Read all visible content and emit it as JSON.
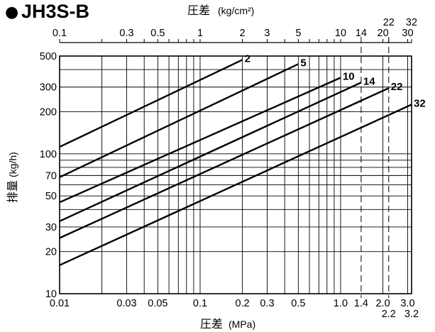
{
  "chart_data": {
    "type": "line",
    "title": "JH3S-B",
    "bullet": "●",
    "xlabel_top": "圧差",
    "xlabel_top_unit": "(kg/cm²)",
    "xlabel_bottom": "圧差",
    "xlabel_bottom_unit": "(MPa)",
    "ylabel": "排量",
    "ylabel_unit": "(kg/h)",
    "x_scale": "log",
    "y_scale": "log",
    "xlim": [
      0.01,
      3.2
    ],
    "ylim": [
      10,
      500
    ],
    "x_grid": [
      0.01,
      0.02,
      0.03,
      0.04,
      0.05,
      0.06,
      0.07,
      0.08,
      0.09,
      0.1,
      0.2,
      0.3,
      0.4,
      0.5,
      0.6,
      0.7,
      0.8,
      0.9,
      1.0,
      2.0,
      3.0
    ],
    "y_grid": [
      10,
      20,
      30,
      40,
      50,
      60,
      70,
      80,
      90,
      100,
      200,
      300,
      400,
      500
    ],
    "x_ticks_bottom": [
      {
        "value": 0.01,
        "label": "0.01"
      },
      {
        "value": 0.03,
        "label": "0.03"
      },
      {
        "value": 0.05,
        "label": "0.05"
      },
      {
        "value": 0.1,
        "label": "0.1"
      },
      {
        "value": 0.2,
        "label": "0.2"
      },
      {
        "value": 0.3,
        "label": "0.3"
      },
      {
        "value": 0.5,
        "label": "0.5"
      },
      {
        "value": 1.0,
        "label": "1.0"
      },
      {
        "value": 1.4,
        "label": "1.4"
      },
      {
        "value": 2.0,
        "label": "2.0"
      },
      {
        "value": 3.0,
        "label": "3.0"
      }
    ],
    "x_ticks_bottom_extra": [
      {
        "value": 2.2,
        "label": "2.2"
      },
      {
        "value": 3.2,
        "label": "3.2"
      }
    ],
    "x_ticks_top": [
      {
        "value": 0.01,
        "label": "0.1"
      },
      {
        "value": 0.03,
        "label": "0.3"
      },
      {
        "value": 0.05,
        "label": "0.5"
      },
      {
        "value": 0.1,
        "label": "1"
      },
      {
        "value": 0.2,
        "label": "2"
      },
      {
        "value": 0.3,
        "label": "3"
      },
      {
        "value": 0.5,
        "label": "5"
      },
      {
        "value": 1.0,
        "label": "10"
      },
      {
        "value": 1.4,
        "label": "14"
      },
      {
        "value": 2.0,
        "label": "20"
      },
      {
        "value": 3.0,
        "label": "30"
      }
    ],
    "x_ticks_top_extra": [
      {
        "value": 2.2,
        "label": "22"
      },
      {
        "value": 3.2,
        "label": "32"
      }
    ],
    "y_ticks": [
      {
        "value": 500,
        "label": "500"
      },
      {
        "value": 300,
        "label": "300"
      },
      {
        "value": 200,
        "label": "200"
      },
      {
        "value": 100,
        "label": "100"
      },
      {
        "value": 70,
        "label": "70"
      },
      {
        "value": 50,
        "label": "50"
      },
      {
        "value": 30,
        "label": "30"
      },
      {
        "value": 20,
        "label": "20"
      },
      {
        "value": 10,
        "label": "10"
      }
    ],
    "dashed_lines": [
      1.4,
      2.2
    ],
    "series": [
      {
        "name": "2",
        "x": [
          0.01,
          0.2
        ],
        "y": [
          112,
          470
        ]
      },
      {
        "name": "5",
        "x": [
          0.01,
          0.5
        ],
        "y": [
          68,
          438
        ]
      },
      {
        "name": "10",
        "x": [
          0.01,
          1.0
        ],
        "y": [
          45,
          350
        ]
      },
      {
        "name": "14",
        "x": [
          0.01,
          1.4
        ],
        "y": [
          33,
          323
        ]
      },
      {
        "name": "22",
        "x": [
          0.01,
          2.2
        ],
        "y": [
          25,
          295
        ]
      },
      {
        "name": "32",
        "x": [
          0.01,
          3.2
        ],
        "y": [
          16,
          225
        ]
      }
    ],
    "grid": true,
    "legend": "none"
  }
}
